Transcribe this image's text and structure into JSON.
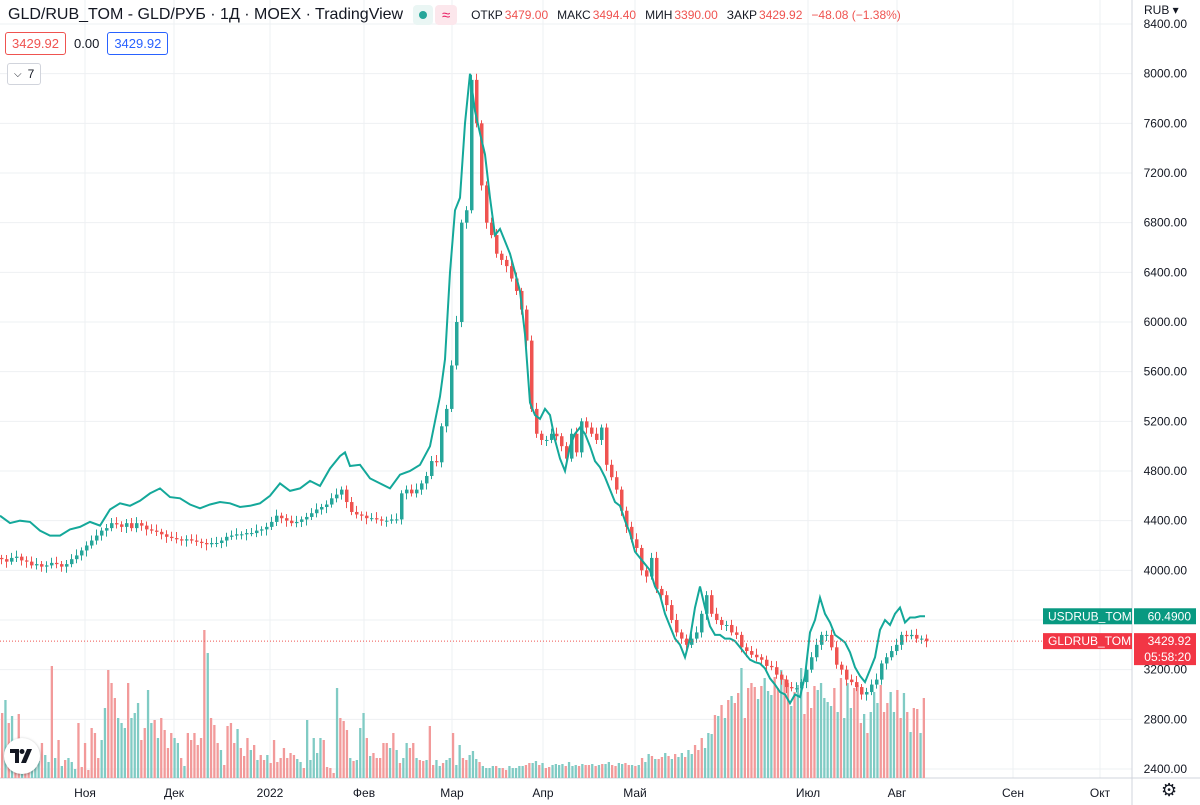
{
  "header": {
    "title": "GLD/RUB_TOM - GLD/РУБ · 1Д · MOEX · TradingView",
    "status_icon": "green-dot-icon",
    "wave_icon": "≈",
    "open_label": "ОТКР",
    "open_value": "3479.00",
    "high_label": "МАКС",
    "high_value": "3494.40",
    "low_label": "МИН",
    "low_value": "3390.00",
    "close_label": "ЗАКР",
    "close_value": "3429.92",
    "change_value": "−48.08 (−1.38%)"
  },
  "indicators": {
    "price_box": "3429.92",
    "spread": "0.00",
    "price_box2": "3429.92",
    "collapsed_count": "7"
  },
  "currency": "RUB",
  "colors": {
    "up": "#26a69a",
    "down": "#ef5350",
    "usd_line": "#14a89a",
    "volume_up": "#80cbc4",
    "volume_down": "#f29a9a",
    "grid": "#eef0f3"
  },
  "chart_data": {
    "type": "candlestick",
    "symbol": "GLD/RUB_TOM",
    "price_axis": {
      "min": 2400,
      "max": 8400,
      "ticks": [
        "2400.00",
        "2800.00",
        "3200.00",
        "3600.00",
        "4000.00",
        "4400.00",
        "4800.00",
        "5200.00",
        "5600.00",
        "6000.00",
        "6400.00",
        "6800.00",
        "7200.00",
        "7600.00",
        "8000.00",
        "8400.00"
      ]
    },
    "time_axis": [
      "Ноя",
      "Дек",
      "2022",
      "Фев",
      "Мар",
      "Апр",
      "Май",
      "Июл",
      "Авг",
      "Сен",
      "Окт"
    ],
    "last_price_label": {
      "symbol": "GLDRUB_TOM",
      "value": "3429.92",
      "countdown": "05:58:20"
    },
    "overlay_label": {
      "symbol": "USDRUB_TOM",
      "value": "60.4900"
    },
    "gold_close": [
      [
        0,
        4090
      ],
      [
        5,
        4070
      ],
      [
        10,
        4100
      ],
      [
        15,
        4110
      ],
      [
        20,
        4080
      ],
      [
        25,
        4070
      ],
      [
        30,
        4040
      ],
      [
        35,
        4050
      ],
      [
        40,
        4030
      ],
      [
        45,
        4040
      ],
      [
        50,
        4060
      ],
      [
        55,
        4050
      ],
      [
        60,
        4030
      ],
      [
        65,
        4050
      ],
      [
        70,
        4090
      ],
      [
        75,
        4120
      ],
      [
        80,
        4160
      ],
      [
        85,
        4200
      ],
      [
        90,
        4240
      ],
      [
        95,
        4280
      ],
      [
        100,
        4320
      ],
      [
        105,
        4340
      ],
      [
        110,
        4380
      ],
      [
        115,
        4370
      ],
      [
        120,
        4350
      ],
      [
        125,
        4380
      ],
      [
        130,
        4340
      ],
      [
        135,
        4380
      ],
      [
        140,
        4360
      ],
      [
        145,
        4330
      ],
      [
        150,
        4320
      ],
      [
        155,
        4310
      ],
      [
        160,
        4290
      ],
      [
        165,
        4270
      ],
      [
        170,
        4260
      ],
      [
        175,
        4250
      ],
      [
        180,
        4240
      ],
      [
        185,
        4250
      ],
      [
        190,
        4240
      ],
      [
        195,
        4230
      ],
      [
        200,
        4220
      ],
      [
        205,
        4210
      ],
      [
        210,
        4220
      ],
      [
        215,
        4220
      ],
      [
        220,
        4240
      ],
      [
        225,
        4270
      ],
      [
        230,
        4280
      ],
      [
        235,
        4290
      ],
      [
        240,
        4290
      ],
      [
        245,
        4300
      ],
      [
        250,
        4300
      ],
      [
        255,
        4320
      ],
      [
        260,
        4330
      ],
      [
        265,
        4350
      ],
      [
        270,
        4390
      ],
      [
        275,
        4440
      ],
      [
        280,
        4420
      ],
      [
        285,
        4400
      ],
      [
        290,
        4380
      ],
      [
        295,
        4390
      ],
      [
        300,
        4410
      ],
      [
        305,
        4430
      ],
      [
        310,
        4460
      ],
      [
        315,
        4490
      ],
      [
        320,
        4510
      ],
      [
        325,
        4530
      ],
      [
        330,
        4580
      ],
      [
        335,
        4610
      ],
      [
        340,
        4650
      ],
      [
        345,
        4550
      ],
      [
        350,
        4470
      ],
      [
        355,
        4450
      ],
      [
        360,
        4440
      ],
      [
        365,
        4420
      ],
      [
        370,
        4420
      ],
      [
        375,
        4410
      ],
      [
        380,
        4400
      ],
      [
        385,
        4400
      ],
      [
        390,
        4410
      ],
      [
        395,
        4410
      ],
      [
        400,
        4620
      ],
      [
        405,
        4650
      ],
      [
        410,
        4620
      ],
      [
        415,
        4650
      ],
      [
        420,
        4700
      ],
      [
        425,
        4760
      ],
      [
        430,
        4880
      ],
      [
        435,
        4870
      ],
      [
        440,
        5160
      ],
      [
        445,
        5300
      ],
      [
        450,
        5650
      ],
      [
        455,
        6000
      ],
      [
        460,
        6800
      ],
      [
        465,
        6900
      ],
      [
        470,
        7950
      ],
      [
        475,
        7600
      ],
      [
        480,
        7100
      ],
      [
        485,
        6800
      ],
      [
        490,
        6700
      ],
      [
        495,
        6550
      ],
      [
        500,
        6500
      ],
      [
        505,
        6450
      ],
      [
        510,
        6350
      ],
      [
        515,
        6250
      ],
      [
        520,
        6100
      ],
      [
        525,
        5850
      ],
      [
        530,
        5300
      ],
      [
        535,
        5100
      ],
      [
        540,
        5050
      ],
      [
        545,
        5050
      ],
      [
        550,
        5100
      ],
      [
        555,
        5080
      ],
      [
        560,
        5000
      ],
      [
        565,
        4900
      ],
      [
        570,
        5100
      ],
      [
        575,
        4950
      ],
      [
        580,
        5200
      ],
      [
        585,
        5150
      ],
      [
        590,
        5100
      ],
      [
        595,
        5050
      ],
      [
        600,
        5150
      ],
      [
        605,
        4850
      ],
      [
        610,
        4750
      ],
      [
        615,
        4650
      ],
      [
        620,
        4480
      ],
      [
        625,
        4350
      ],
      [
        630,
        4250
      ],
      [
        635,
        4180
      ],
      [
        640,
        4000
      ],
      [
        645,
        3950
      ],
      [
        650,
        4100
      ],
      [
        655,
        3850
      ],
      [
        660,
        3800
      ],
      [
        665,
        3720
      ],
      [
        670,
        3600
      ],
      [
        675,
        3500
      ],
      [
        680,
        3450
      ],
      [
        685,
        3400
      ],
      [
        690,
        3450
      ],
      [
        695,
        3500
      ],
      [
        700,
        3650
      ],
      [
        705,
        3800
      ],
      [
        710,
        3650
      ],
      [
        715,
        3600
      ],
      [
        720,
        3560
      ],
      [
        725,
        3560
      ],
      [
        730,
        3500
      ],
      [
        735,
        3480
      ],
      [
        740,
        3380
      ],
      [
        745,
        3350
      ],
      [
        750,
        3320
      ],
      [
        755,
        3300
      ],
      [
        760,
        3280
      ],
      [
        765,
        3230
      ],
      [
        770,
        3220
      ],
      [
        775,
        3160
      ],
      [
        780,
        3120
      ],
      [
        785,
        3060
      ],
      [
        790,
        3050
      ],
      [
        795,
        3050
      ],
      [
        800,
        3100
      ],
      [
        805,
        3200
      ],
      [
        810,
        3300
      ],
      [
        815,
        3400
      ],
      [
        820,
        3480
      ],
      [
        825,
        3480
      ],
      [
        830,
        3380
      ],
      [
        835,
        3240
      ],
      [
        840,
        3200
      ],
      [
        845,
        3120
      ],
      [
        850,
        3100
      ],
      [
        855,
        3060
      ],
      [
        860,
        3000
      ],
      [
        865,
        3020
      ],
      [
        870,
        3080
      ],
      [
        875,
        3120
      ],
      [
        880,
        3250
      ],
      [
        885,
        3300
      ],
      [
        890,
        3350
      ],
      [
        895,
        3400
      ],
      [
        900,
        3480
      ],
      [
        905,
        3470
      ],
      [
        910,
        3480
      ],
      [
        915,
        3450
      ],
      [
        920,
        3450
      ],
      [
        925,
        3430
      ]
    ],
    "usd_line": [
      [
        0,
        4440
      ],
      [
        10,
        4380
      ],
      [
        20,
        4400
      ],
      [
        30,
        4390
      ],
      [
        40,
        4320
      ],
      [
        50,
        4280
      ],
      [
        60,
        4280
      ],
      [
        70,
        4330
      ],
      [
        80,
        4350
      ],
      [
        90,
        4390
      ],
      [
        100,
        4360
      ],
      [
        110,
        4490
      ],
      [
        120,
        4540
      ],
      [
        130,
        4520
      ],
      [
        140,
        4560
      ],
      [
        150,
        4620
      ],
      [
        160,
        4660
      ],
      [
        170,
        4590
      ],
      [
        180,
        4580
      ],
      [
        190,
        4530
      ],
      [
        200,
        4500
      ],
      [
        210,
        4530
      ],
      [
        220,
        4550
      ],
      [
        230,
        4540
      ],
      [
        240,
        4510
      ],
      [
        250,
        4520
      ],
      [
        260,
        4540
      ],
      [
        270,
        4600
      ],
      [
        280,
        4700
      ],
      [
        290,
        4640
      ],
      [
        300,
        4660
      ],
      [
        310,
        4720
      ],
      [
        320,
        4680
      ],
      [
        330,
        4820
      ],
      [
        340,
        4920
      ],
      [
        345,
        4950
      ],
      [
        350,
        4840
      ],
      [
        360,
        4850
      ],
      [
        370,
        4740
      ],
      [
        380,
        4700
      ],
      [
        390,
        4660
      ],
      [
        400,
        4770
      ],
      [
        410,
        4800
      ],
      [
        420,
        4850
      ],
      [
        430,
        5000
      ],
      [
        440,
        5400
      ],
      [
        445,
        5700
      ],
      [
        450,
        6400
      ],
      [
        455,
        6900
      ],
      [
        460,
        7000
      ],
      [
        465,
        7600
      ],
      [
        470,
        8000
      ],
      [
        475,
        7700
      ],
      [
        480,
        7520
      ],
      [
        485,
        7350
      ],
      [
        490,
        7000
      ],
      [
        495,
        6700
      ],
      [
        500,
        6750
      ],
      [
        505,
        6650
      ],
      [
        510,
        6550
      ],
      [
        515,
        6400
      ],
      [
        520,
        6250
      ],
      [
        525,
        5900
      ],
      [
        530,
        5350
      ],
      [
        535,
        5250
      ],
      [
        540,
        5220
      ],
      [
        545,
        5300
      ],
      [
        550,
        5250
      ],
      [
        555,
        5050
      ],
      [
        560,
        4900
      ],
      [
        565,
        4800
      ],
      [
        570,
        5000
      ],
      [
        575,
        5100
      ],
      [
        580,
        5150
      ],
      [
        585,
        5100
      ],
      [
        590,
        5000
      ],
      [
        595,
        4880
      ],
      [
        600,
        4830
      ],
      [
        605,
        4750
      ],
      [
        610,
        4650
      ],
      [
        615,
        4550
      ],
      [
        620,
        4520
      ],
      [
        625,
        4400
      ],
      [
        630,
        4300
      ],
      [
        635,
        4150
      ],
      [
        640,
        4100
      ],
      [
        645,
        4050
      ],
      [
        650,
        4000
      ],
      [
        655,
        3870
      ],
      [
        660,
        3800
      ],
      [
        665,
        3650
      ],
      [
        670,
        3550
      ],
      [
        675,
        3450
      ],
      [
        680,
        3400
      ],
      [
        685,
        3300
      ],
      [
        690,
        3450
      ],
      [
        695,
        3700
      ],
      [
        700,
        3870
      ],
      [
        705,
        3700
      ],
      [
        710,
        3550
      ],
      [
        715,
        3480
      ],
      [
        720,
        3480
      ],
      [
        725,
        3450
      ],
      [
        730,
        3450
      ],
      [
        735,
        3430
      ],
      [
        740,
        3380
      ],
      [
        745,
        3330
      ],
      [
        750,
        3280
      ],
      [
        755,
        3260
      ],
      [
        760,
        3250
      ],
      [
        765,
        3210
      ],
      [
        770,
        3130
      ],
      [
        775,
        3080
      ],
      [
        780,
        3020
      ],
      [
        785,
        3000
      ],
      [
        790,
        2930
      ],
      [
        795,
        3000
      ],
      [
        800,
        2980
      ],
      [
        805,
        3150
      ],
      [
        810,
        3500
      ],
      [
        815,
        3600
      ],
      [
        820,
        3780
      ],
      [
        825,
        3650
      ],
      [
        830,
        3580
      ],
      [
        835,
        3480
      ],
      [
        840,
        3450
      ],
      [
        845,
        3420
      ],
      [
        850,
        3340
      ],
      [
        855,
        3220
      ],
      [
        860,
        3150
      ],
      [
        865,
        3100
      ],
      [
        870,
        3200
      ],
      [
        875,
        3300
      ],
      [
        880,
        3520
      ],
      [
        885,
        3600
      ],
      [
        890,
        3560
      ],
      [
        895,
        3650
      ],
      [
        900,
        3700
      ],
      [
        905,
        3580
      ],
      [
        910,
        3620
      ],
      [
        915,
        3620
      ],
      [
        920,
        3630
      ],
      [
        925,
        3630
      ]
    ],
    "volume_heights": [
      65,
      78,
      55,
      62,
      30,
      64,
      38,
      25,
      12,
      12,
      22,
      17,
      35,
      23,
      16,
      112,
      20,
      38,
      12,
      18,
      20,
      16,
      9,
      55,
      11,
      35,
      8,
      50,
      45,
      20,
      38,
      70,
      108,
      95,
      80,
      60,
      55,
      50,
      95,
      60,
      65,
      75,
      38,
      50,
      88,
      55,
      58,
      40,
      60,
      48,
      30,
      45,
      40,
      35,
      20,
      12,
      45,
      38,
      45,
      33,
      40,
      148,
      125,
      60,
      53,
      35,
      28,
      13,
      52,
      55,
      35,
      49,
      30,
      22,
      40,
      28,
      33,
      18,
      23,
      18,
      23,
      15,
      38,
      16,
      20,
      30,
      20,
      25,
      23,
      19,
      16,
      10,
      58,
      18,
      40,
      25,
      40,
      38,
      11,
      10,
      5,
      90,
      60,
      57,
      48,
      20,
      17,
      18,
      50,
      65,
      40,
      22,
      25,
      20,
      20,
      35,
      35,
      30,
      45,
      28,
      15,
      20,
      35,
      30,
      35,
      20,
      18,
      17,
      18,
      52,
      13,
      18,
      12,
      15,
      18,
      20,
      45,
      13,
      33,
      20,
      18,
      23,
      27,
      19,
      16,
      12,
      10,
      10,
      12,
      12,
      10,
      10,
      8,
      12,
      10,
      10,
      12,
      12,
      13,
      15,
      15,
      17,
      13,
      15,
      10,
      11,
      13,
      14,
      13,
      14,
      12,
      16,
      12,
      13,
      12,
      14,
      13,
      13,
      14,
      12,
      13,
      14,
      14,
      16,
      13,
      12,
      15,
      14,
      15,
      13,
      13,
      12,
      13,
      20,
      16,
      24,
      22,
      19,
      19,
      21,
      25,
      22,
      19,
      24,
      21,
      25,
      21,
      28,
      24,
      33,
      28,
      40,
      30,
      45,
      44,
      63,
      62,
      73,
      60,
      78,
      82,
      75,
      85,
      110,
      60,
      90,
      95,
      91,
      79,
      92,
      100,
      87,
      83,
      101,
      90,
      108,
      99,
      95,
      72,
      86,
      93,
      110,
      64,
      86,
      70,
      92,
      88,
      95,
      80,
      76,
      72,
      90,
      66,
      100,
      60,
      95,
      70,
      90,
      93,
      55,
      64,
      45,
      66,
      86,
      75,
      93,
      66,
      75,
      86,
      66,
      88,
      60,
      85,
      66,
      46,
      70,
      69,
      45,
      80
    ]
  }
}
